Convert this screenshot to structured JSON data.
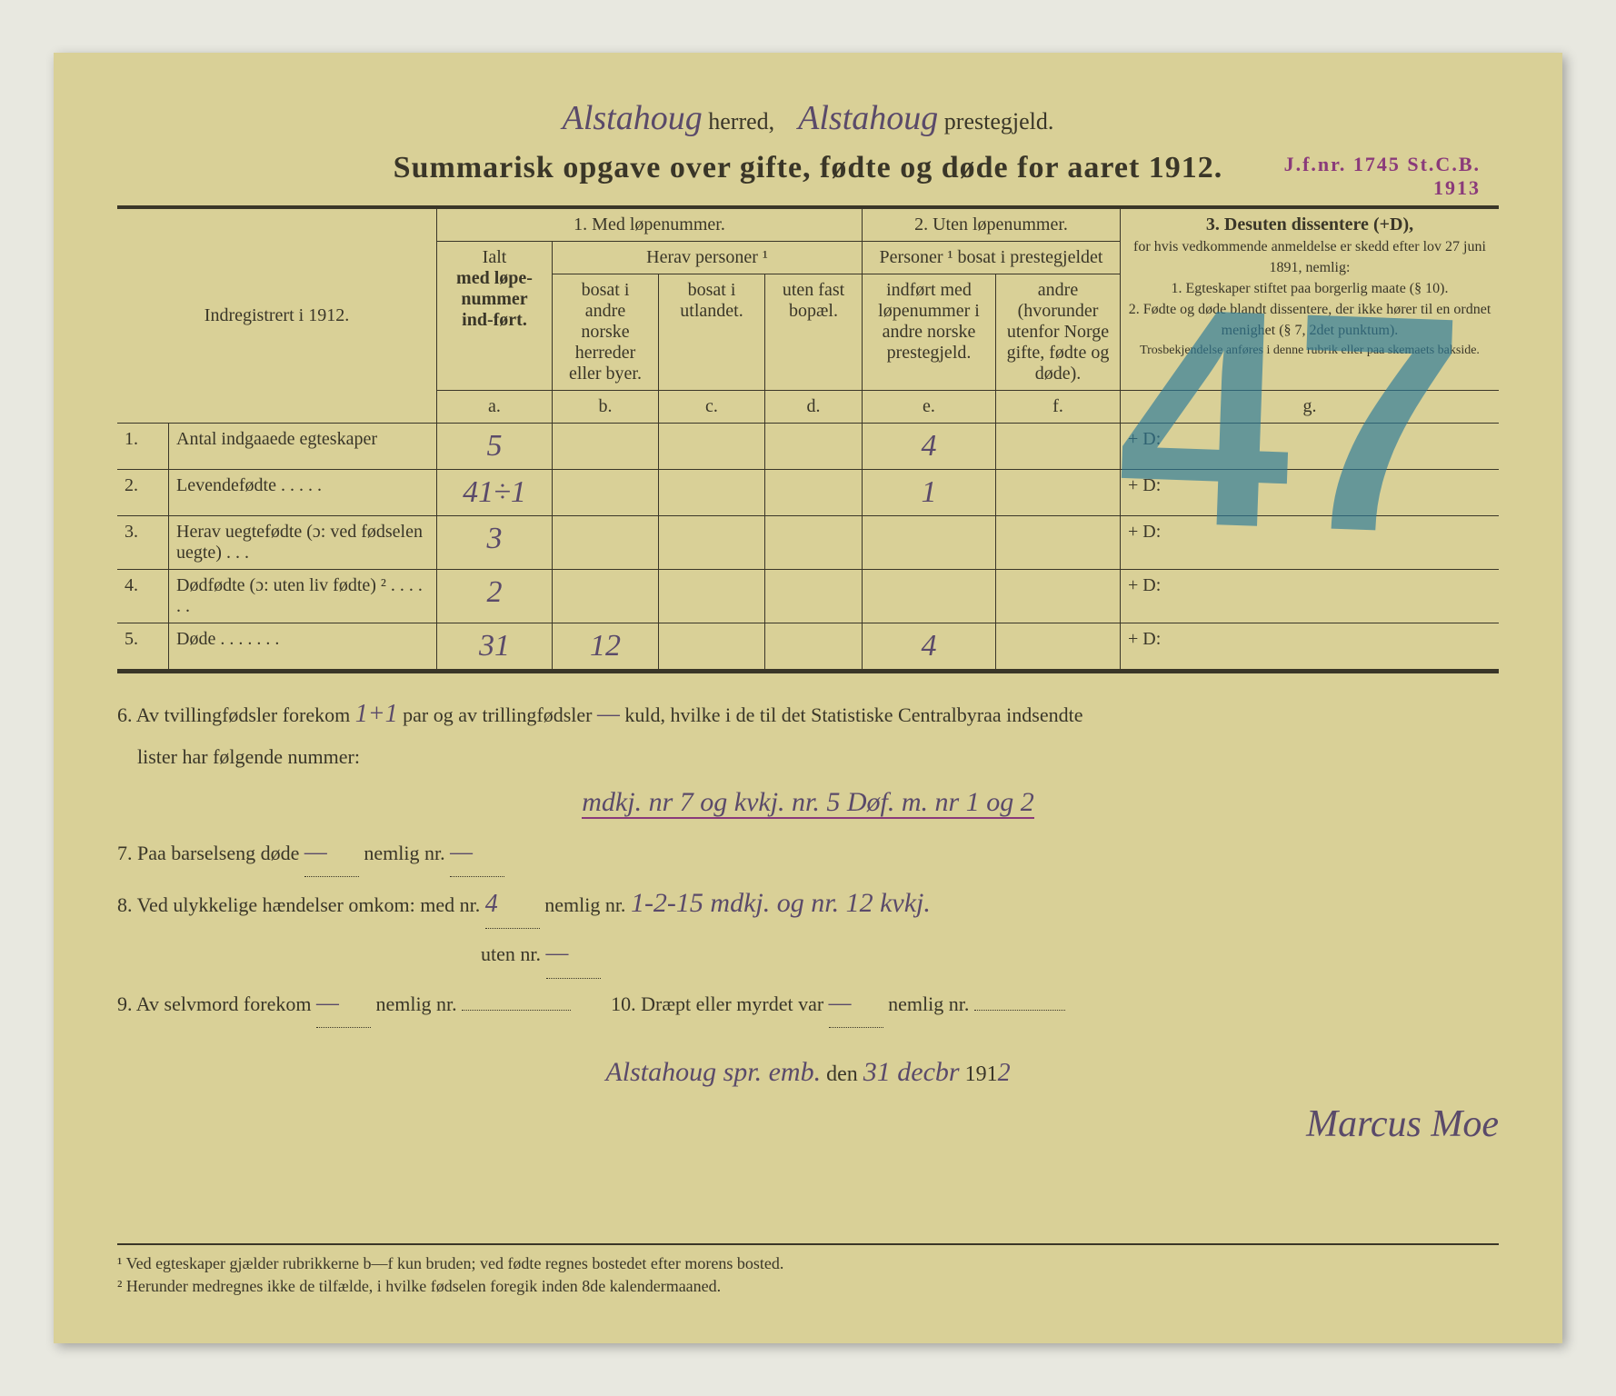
{
  "header": {
    "herred": "Alstahoug",
    "herred_label": "herred,",
    "prestegjeld": "Alstahoug",
    "prestegjeld_label": "prestegjeld.",
    "title": "Summarisk opgave over gifte, fødte og døde for aaret 1912."
  },
  "stamp": {
    "line1": "J.f.nr. 1745 St.C.B.",
    "line2": "1913"
  },
  "columns": {
    "indreg": "Indregistrert i 1912.",
    "sec1": "1.  Med løpenummer.",
    "sec2": "2. Uten løpenummer.",
    "sec3": "3. Desuten dissentere (+D),",
    "ialt": "Ialt",
    "ialt_sub": "med løpe-nummer ind-ført.",
    "herav": "Herav personer ¹",
    "b": "bosat i andre norske herreder eller byer.",
    "c": "bosat i utlandet.",
    "d": "uten fast bopæl.",
    "personer": "Personer ¹ bosat i prestegjeldet",
    "e": "indført med løpenummer i andre norske prestegjeld.",
    "f": "andre (hvorunder utenfor Norge gifte, fødte og døde).",
    "g_text": "for hvis vedkommende anmeldelse er skedd efter lov 27 juni 1891, nemlig:\n1. Egteskaper stiftet paa borgerlig maate (§ 10).\n2. Fødte og døde blandt dissentere, der ikke hører til en ordnet menighet (§ 7, 2det punktum).",
    "g_small": "Trosbekjendelse anføres i denne rubrik eller paa skemaets bakside.",
    "letters": {
      "a": "a.",
      "b": "b.",
      "c": "c.",
      "d": "d.",
      "e": "e.",
      "f": "f.",
      "g": "g."
    }
  },
  "rows": [
    {
      "n": "1.",
      "label": "Antal indgaaede egteskaper",
      "a": "5",
      "b": "",
      "c": "",
      "d": "",
      "e": "4",
      "f": "",
      "g": "+ D:"
    },
    {
      "n": "2.",
      "label": "Levendefødte   .   .   .   .   .",
      "a": "41÷1",
      "b": "",
      "c": "",
      "d": "",
      "e": "1",
      "f": "",
      "g": "+ D:"
    },
    {
      "n": "3.",
      "label": "Herav uegtefødte (ɔ: ved fødselen uegte)   .   .   .",
      "a": "3",
      "b": "",
      "c": "",
      "d": "",
      "e": "",
      "f": "",
      "g": "+ D:"
    },
    {
      "n": "4.",
      "label": "Dødfødte  (ɔ:  uten  liv fødte) ²  .   .   .   .   .   .",
      "a": "2",
      "b": "",
      "c": "",
      "d": "",
      "e": "",
      "f": "",
      "g": "+ D:"
    },
    {
      "n": "5.",
      "label": "Døde .   .   .   .   .   .   .",
      "a": "31",
      "b": "12",
      "c": "",
      "d": "",
      "e": "4",
      "f": "",
      "g": "+ D:"
    }
  ],
  "notes": {
    "l6a": "6.   Av tvillingfødsler forekom ",
    "l6_twin": "1+1",
    "l6b": " par og av trillingfødsler ",
    "l6_trip": "—",
    "l6c": " kuld, hvilke i de til det Statistiske Centralbyraa indsendte",
    "l6d": "lister har følgende nummer:",
    "l6_hw": "mdkj. nr 7 og kvkj. nr. 5  Døf. m. nr 1 og 2",
    "l7a": "7.   Paa barselseng døde ",
    "l7_v1": "—",
    "l7b": "  nemlig nr.",
    "l7_v2": "—",
    "l8a": "8.   Ved ulykkelige hændelser omkom:  med nr. ",
    "l8_v1": "4",
    "l8b": "  nemlig nr. ",
    "l8_hw": "1-2-15 mdkj. og nr. 12 kvkj.",
    "l8c": "uten nr.",
    "l8_v2": "—",
    "l9a": "9.   Av selvmord forekom ",
    "l9_v1": "—",
    "l9b": "  nemlig nr.",
    "l10a": "10.   Dræpt eller myrdet var ",
    "l10_v1": "—",
    "l10b": "  nemlig nr."
  },
  "signature": {
    "place": "Alstahoug spr. emb.",
    "den": " den ",
    "date": "31 decbr",
    "year_prefix": " 191",
    "year": "2",
    "name": "Marcus Moe"
  },
  "footnotes": {
    "f1": "¹ Ved egteskaper gjælder rubrikkerne b—f kun bruden; ved fødte regnes bostedet efter morens bosted.",
    "f2": "² Herunder medregnes ikke de tilfælde, i hvilke fødselen foregik inden 8de kalendermaaned."
  },
  "bigmark": "47"
}
